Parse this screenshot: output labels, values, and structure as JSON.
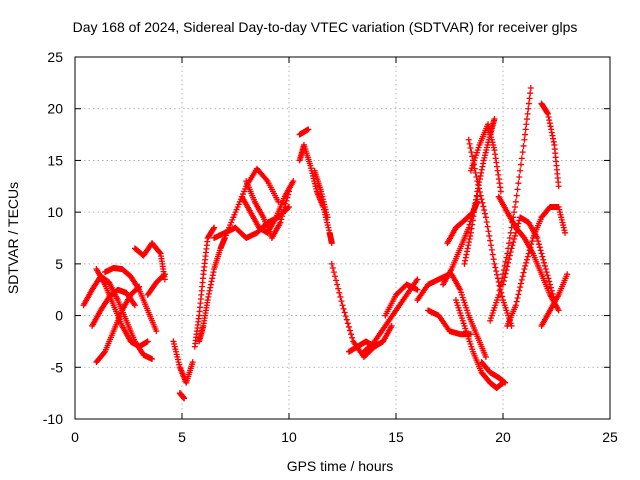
{
  "chart_data": {
    "type": "scatter",
    "title": "Day 168 of 2024, Sidereal Day-to-day VTEC variation (SDTVAR) for receiver glps",
    "xlabel": "GPS time / hours",
    "ylabel": "SDTVAR / TECUs",
    "xlim": [
      0,
      25
    ],
    "ylim": [
      -10,
      25
    ],
    "xticks": [
      0,
      5,
      10,
      15,
      20,
      25
    ],
    "yticks": [
      -10,
      -5,
      0,
      5,
      10,
      15,
      20,
      25
    ],
    "grid": true,
    "marker": "plus",
    "marker_color": "#ff0000",
    "series": [
      {
        "name": "track-01",
        "x": [
          0.4,
          0.8,
          1.2,
          1.6,
          2.0,
          2.4,
          2.8,
          3.2,
          3.6
        ],
        "y": [
          1.0,
          2.5,
          3.8,
          3.2,
          1.5,
          -0.5,
          -2.5,
          -3.8,
          -4.2
        ]
      },
      {
        "name": "track-02",
        "x": [
          0.8,
          1.2,
          1.6,
          2.0,
          2.4,
          2.8
        ],
        "y": [
          -1.0,
          0.5,
          1.8,
          2.5,
          2.2,
          1.0
        ]
      },
      {
        "name": "track-03",
        "x": [
          1.0,
          1.4,
          1.8,
          2.2,
          2.6,
          3.0
        ],
        "y": [
          -4.5,
          -3.5,
          -1.5,
          0.5,
          2.0,
          2.8
        ]
      },
      {
        "name": "track-04",
        "x": [
          1.4,
          1.8,
          2.2,
          2.6,
          3.0,
          3.4,
          3.8
        ],
        "y": [
          4.2,
          4.6,
          4.5,
          3.8,
          2.5,
          0.5,
          -1.5
        ]
      },
      {
        "name": "track-05",
        "x": [
          1.0,
          1.4,
          1.8,
          2.2,
          2.6,
          3.0,
          3.4
        ],
        "y": [
          4.5,
          3.0,
          1.0,
          -1.0,
          -2.5,
          -3.0,
          -2.5
        ]
      },
      {
        "name": "track-06",
        "x": [
          2.8,
          3.2,
          3.6,
          4.0,
          4.2
        ],
        "y": [
          6.5,
          5.8,
          7.0,
          6.0,
          3.5
        ]
      },
      {
        "name": "track-07",
        "x": [
          3.4,
          3.8,
          4.2
        ],
        "y": [
          2.0,
          3.2,
          4.0
        ]
      },
      {
        "name": "track-08",
        "x": [
          4.6,
          4.9,
          5.2,
          5.5
        ],
        "y": [
          -2.5,
          -5.0,
          -6.5,
          -4.5
        ]
      },
      {
        "name": "track-09",
        "x": [
          4.9,
          5.1
        ],
        "y": [
          -7.5,
          -8.0
        ]
      },
      {
        "name": "track-10",
        "x": [
          5.6,
          5.8,
          6.0,
          6.2,
          6.5
        ],
        "y": [
          -3.0,
          0.0,
          4.0,
          7.5,
          8.5
        ]
      },
      {
        "name": "track-11",
        "x": [
          5.8,
          6.0,
          6.2,
          6.5,
          6.8,
          7.0
        ],
        "y": [
          -2.5,
          -1.0,
          1.5,
          4.5,
          6.5,
          7.5
        ]
      },
      {
        "name": "track-12",
        "x": [
          6.5,
          7.0,
          7.5,
          8.0,
          8.5,
          9.0,
          9.5,
          10.0
        ],
        "y": [
          7.5,
          8.0,
          8.5,
          7.5,
          8.0,
          9.0,
          9.5,
          10.5
        ]
      },
      {
        "name": "track-13",
        "x": [
          7.0,
          7.5,
          8.0,
          8.5,
          9.0,
          9.5
        ],
        "y": [
          7.5,
          10.0,
          12.5,
          14.2,
          13.0,
          11.0
        ]
      },
      {
        "name": "track-14",
        "x": [
          7.8,
          8.2,
          8.6,
          9.0,
          9.4,
          9.8,
          10.2
        ],
        "y": [
          11.5,
          10.0,
          8.5,
          8.0,
          9.5,
          11.5,
          13.0
        ]
      },
      {
        "name": "track-15",
        "x": [
          8.0,
          8.4,
          8.8,
          9.2,
          9.6,
          10.0
        ],
        "y": [
          13.0,
          11.0,
          9.5,
          7.5,
          9.0,
          12.0
        ]
      },
      {
        "name": "track-16",
        "x": [
          10.5,
          10.9
        ],
        "y": [
          17.5,
          18.0
        ]
      },
      {
        "name": "track-17",
        "x": [
          10.5,
          10.7,
          11.0,
          11.3,
          11.6,
          11.9,
          12.0
        ],
        "y": [
          15.0,
          16.5,
          14.5,
          12.0,
          10.5,
          8.0,
          7.0
        ]
      },
      {
        "name": "track-18",
        "x": [
          11.2,
          11.5,
          11.8
        ],
        "y": [
          14.0,
          12.0,
          9.5
        ]
      },
      {
        "name": "track-19",
        "x": [
          12.0,
          12.5,
          13.0,
          13.5,
          14.0
        ],
        "y": [
          5.0,
          1.0,
          -2.5,
          -4.0,
          -3.0
        ]
      },
      {
        "name": "track-20",
        "x": [
          12.8,
          13.2,
          13.6,
          14.0,
          14.4,
          14.8
        ],
        "y": [
          -3.5,
          -3.0,
          -2.5,
          -3.0,
          -2.5,
          -1.0
        ]
      },
      {
        "name": "track-21",
        "x": [
          13.5,
          14.0,
          14.5,
          15.0,
          15.5,
          16.0
        ],
        "y": [
          -3.5,
          -2.5,
          -1.0,
          0.5,
          2.0,
          3.5
        ]
      },
      {
        "name": "track-22",
        "x": [
          14.5,
          15.0,
          15.5,
          16.0
        ],
        "y": [
          0.0,
          2.0,
          3.0,
          2.5
        ]
      },
      {
        "name": "track-23",
        "x": [
          16.0,
          16.5,
          17.0,
          17.5
        ],
        "y": [
          1.5,
          3.0,
          3.5,
          4.0
        ]
      },
      {
        "name": "track-24",
        "x": [
          16.5,
          17.0,
          17.5,
          18.0,
          18.5
        ],
        "y": [
          0.5,
          0.0,
          -1.5,
          -1.8,
          -1.8
        ]
      },
      {
        "name": "track-25",
        "x": [
          17.2,
          17.6,
          18.0,
          18.4,
          18.8
        ],
        "y": [
          3.0,
          4.5,
          6.5,
          8.5,
          11.5
        ]
      },
      {
        "name": "track-26",
        "x": [
          17.4,
          17.8,
          18.2,
          18.6,
          18.8
        ],
        "y": [
          7.0,
          8.5,
          9.2,
          10.0,
          11.0
        ]
      },
      {
        "name": "track-27",
        "x": [
          17.6,
          18.0,
          18.4,
          18.8,
          19.2
        ],
        "y": [
          4.0,
          2.5,
          0.0,
          -2.0,
          -4.0
        ]
      },
      {
        "name": "track-28",
        "x": [
          17.8,
          18.2,
          18.6,
          19.0,
          19.4,
          19.7,
          20.0
        ],
        "y": [
          1.5,
          -1.0,
          -3.5,
          -5.5,
          -6.5,
          -7.0,
          -6.5
        ]
      },
      {
        "name": "track-29",
        "x": [
          18.2,
          18.5,
          18.8,
          19.1,
          19.4,
          19.6
        ],
        "y": [
          5.0,
          8.0,
          12.0,
          15.0,
          17.5,
          19.0
        ]
      },
      {
        "name": "track-30",
        "x": [
          18.5,
          18.9,
          19.3,
          19.6,
          19.9
        ],
        "y": [
          14.0,
          16.5,
          18.5,
          16.0,
          12.0
        ]
      },
      {
        "name": "track-31",
        "x": [
          18.4,
          18.8,
          19.2,
          19.6,
          20.0,
          20.4
        ],
        "y": [
          17.0,
          13.0,
          9.5,
          5.0,
          1.5,
          -1.0
        ]
      },
      {
        "name": "track-32",
        "x": [
          19.0,
          19.4,
          19.8,
          20.1
        ],
        "y": [
          -4.5,
          -5.5,
          -6.0,
          -6.5
        ]
      },
      {
        "name": "track-33",
        "x": [
          19.4,
          19.8,
          20.2,
          20.6,
          21.0,
          21.3
        ],
        "y": [
          -0.5,
          2.0,
          6.0,
          11.0,
          17.0,
          22.0
        ]
      },
      {
        "name": "track-34",
        "x": [
          19.8,
          20.2,
          20.6,
          21.0,
          21.4,
          21.8,
          22.2,
          22.6
        ],
        "y": [
          11.5,
          10.0,
          8.5,
          7.5,
          6.0,
          4.0,
          2.0,
          0.5
        ]
      },
      {
        "name": "track-35",
        "x": [
          20.0,
          20.4,
          20.8,
          21.2,
          21.6,
          22.0,
          22.4
        ],
        "y": [
          3.0,
          6.5,
          9.5,
          9.0,
          7.5,
          4.5,
          1.5
        ]
      },
      {
        "name": "track-36",
        "x": [
          20.2,
          20.6,
          21.0,
          21.4,
          21.8,
          22.2,
          22.6,
          22.9
        ],
        "y": [
          -1.0,
          1.0,
          4.5,
          7.5,
          9.5,
          10.5,
          10.5,
          8.0
        ]
      },
      {
        "name": "track-37",
        "x": [
          21.8,
          22.1,
          22.4,
          22.6
        ],
        "y": [
          20.5,
          19.5,
          16.5,
          12.5
        ]
      },
      {
        "name": "track-38",
        "x": [
          21.8,
          22.2,
          22.6,
          23.0
        ],
        "y": [
          -1.0,
          0.5,
          2.0,
          4.0
        ]
      }
    ]
  }
}
